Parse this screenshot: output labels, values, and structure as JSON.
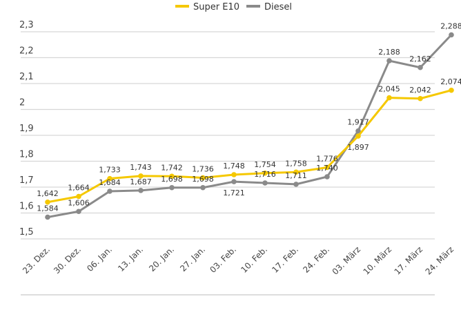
{
  "chart_data": {
    "type": "line",
    "title": "",
    "xlabel": "",
    "ylabel": "",
    "categories": [
      "23. Dez.",
      "30. Dez.",
      "06. Jan.",
      "13. Jan.",
      "20. Jan.",
      "27. Jan.",
      "03. Feb.",
      "10. Feb.",
      "17. Feb.",
      "24. Feb.",
      "03. März",
      "10. März",
      "17. März",
      "24. März"
    ],
    "ylim": [
      1.5,
      2.3
    ],
    "yticks": [
      "1,5",
      "1,6",
      "1,7",
      "1,8",
      "1,9",
      "2",
      "2,1",
      "2,2",
      "2,3"
    ],
    "grid": true,
    "legend_position": "top",
    "series": [
      {
        "name": "Super E10",
        "color": "#f5c800",
        "values": [
          1.642,
          1.664,
          1.733,
          1.743,
          1.742,
          1.736,
          1.748,
          1.754,
          1.758,
          1.776,
          1.897,
          2.045,
          2.042,
          2.074
        ],
        "labels": [
          "1,642",
          "1,664",
          "1,733",
          "1,743",
          "1,742",
          "1,736",
          "1,748",
          "1,754",
          "1,758",
          "1,776",
          "1,897",
          "2,045",
          "2,042",
          "2,074"
        ]
      },
      {
        "name": "Diesel",
        "color": "#8a8a8a",
        "values": [
          1.584,
          1.606,
          1.684,
          1.687,
          1.698,
          1.698,
          1.721,
          1.716,
          1.711,
          1.74,
          1.917,
          2.188,
          2.162,
          2.288
        ],
        "labels": [
          "1,584",
          "1,606",
          "1,684",
          "1,687",
          "1,698",
          "1,698",
          "1,721",
          "1,716",
          "1,711",
          "1,740",
          "1,917",
          "2,188",
          "2,162",
          "2,288"
        ]
      }
    ]
  }
}
